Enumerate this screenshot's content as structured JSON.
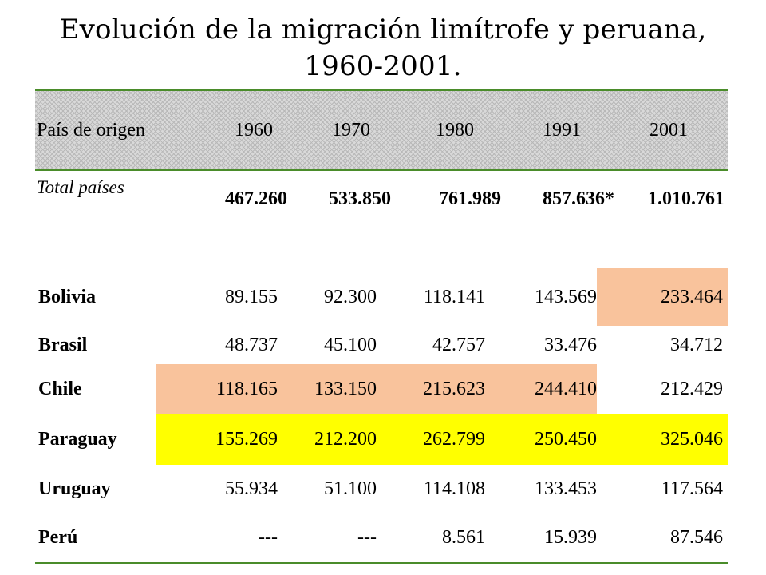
{
  "title": {
    "line1": "Evolución de la migración limítrofe y peruana,",
    "line2": "1960-2001."
  },
  "colors": {
    "rule_green": "#4a8c2a",
    "highlight_salmon": "#f9c39c",
    "highlight_yellow": "#ffff00",
    "header_pattern": "#d9d9d9"
  },
  "table": {
    "header": {
      "origin": "País de origen",
      "years": [
        "1960",
        "1970",
        "1980",
        "1991",
        "2001"
      ]
    },
    "total": {
      "label": "Total países",
      "values": [
        "467.260",
        "533.850",
        "761.989",
        "857.636*",
        "1.010.761"
      ]
    },
    "rows": [
      {
        "country": "Bolivia",
        "values": [
          "89.155",
          "92.300",
          "118.141",
          "143.569",
          "233.464"
        ]
      },
      {
        "country": "Brasil",
        "values": [
          "48.737",
          "45.100",
          "42.757",
          "33.476",
          "34.712"
        ]
      },
      {
        "country": "Chile",
        "values": [
          "118.165",
          "133.150",
          "215.623",
          "244.410",
          "212.429"
        ]
      },
      {
        "country": "Paraguay",
        "values": [
          "155.269",
          "212.200",
          "262.799",
          "250.450",
          "325.046"
        ]
      },
      {
        "country": "Uruguay",
        "values": [
          "55.934",
          "51.100",
          "114.108",
          "133.453",
          "117.564"
        ]
      },
      {
        "country": "Perú",
        "values": [
          "---",
          "---",
          "8.561",
          "15.939",
          "87.546"
        ]
      }
    ]
  }
}
